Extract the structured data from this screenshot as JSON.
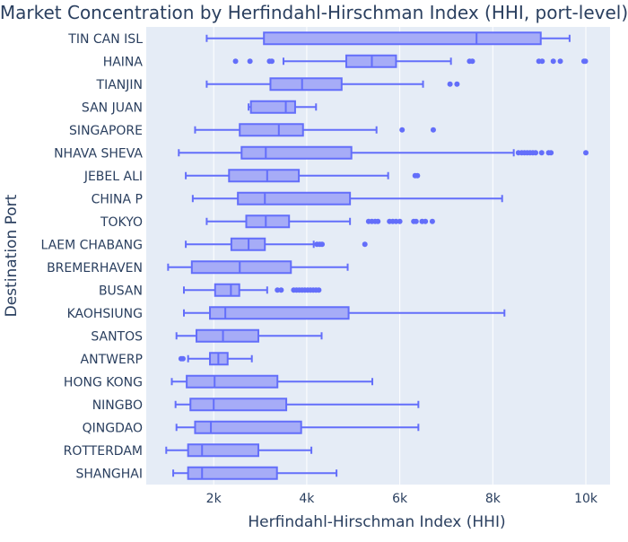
{
  "chart_data": {
    "type": "box",
    "orientation": "horizontal",
    "title": "Market Concentration by Herfindahl-Hirschman Index (HHI, port-level)",
    "xlabel": "Herfindahl-Hirschman Index (HHI)",
    "ylabel": "Destination Port",
    "xlim": [
      550,
      10520
    ],
    "x_ticks": [
      2000,
      4000,
      6000,
      8000,
      10000
    ],
    "x_tick_labels": [
      "2k",
      "4k",
      "6k",
      "8k",
      "10k"
    ],
    "grid": true,
    "colors": {
      "plot_bg": "#e5ecf6",
      "grid": "#ffffff",
      "box_fill": "#a6acf7",
      "box_line": "#636efa",
      "text": "#2a3f5f"
    },
    "ports": [
      {
        "name": "TIN CAN ISL",
        "whisker_low": 1850,
        "q1": 3080,
        "median": 7650,
        "q3": 9030,
        "whisker_high": 9650,
        "outliers": []
      },
      {
        "name": "HAINA",
        "whisker_low": 3500,
        "q1": 4850,
        "median": 5400,
        "q3": 5920,
        "whisker_high": 7100,
        "outliers": [
          2470,
          2780,
          3200,
          3250,
          7500,
          7560,
          8990,
          9060,
          9300,
          9450,
          9960,
          9990
        ]
      },
      {
        "name": "TIANJIN",
        "whisker_low": 1850,
        "q1": 3220,
        "median": 3900,
        "q3": 4750,
        "whisker_high": 6500,
        "outliers": [
          7080,
          7230
        ]
      },
      {
        "name": "SAN JUAN",
        "whisker_low": 2750,
        "q1": 2800,
        "median": 3550,
        "q3": 3750,
        "whisker_high": 4200,
        "outliers": []
      },
      {
        "name": "SINGAPORE",
        "whisker_low": 1600,
        "q1": 2560,
        "median": 3400,
        "q3": 3920,
        "whisker_high": 5500,
        "outliers": [
          6050,
          6720
        ]
      },
      {
        "name": "NHAVA SHEVA",
        "whisker_low": 1250,
        "q1": 2600,
        "median": 3120,
        "q3": 4960,
        "whisker_high": 8450,
        "outliers": [
          8550,
          8620,
          8680,
          8740,
          8800,
          8860,
          8920,
          9050,
          9200,
          9250,
          10000
        ]
      },
      {
        "name": "JEBEL ALI",
        "whisker_low": 1400,
        "q1": 2330,
        "median": 3150,
        "q3": 3830,
        "whisker_high": 5750,
        "outliers": [
          6330,
          6380
        ]
      },
      {
        "name": "CHINA P",
        "whisker_low": 1550,
        "q1": 2520,
        "median": 3100,
        "q3": 4930,
        "whisker_high": 8200,
        "outliers": []
      },
      {
        "name": "TOKYO",
        "whisker_low": 1850,
        "q1": 2700,
        "median": 3120,
        "q3": 3620,
        "whisker_high": 4930,
        "outliers": [
          5330,
          5400,
          5470,
          5530,
          5780,
          5850,
          5920,
          6000,
          6300,
          6350,
          6480,
          6550,
          6700
        ]
      },
      {
        "name": "LAEM CHABANG",
        "whisker_low": 1400,
        "q1": 2380,
        "median": 2750,
        "q3": 3100,
        "whisker_high": 4150,
        "outliers": [
          4220,
          4280,
          4330,
          5250
        ]
      },
      {
        "name": "BREMERHAVEN",
        "whisker_low": 1020,
        "q1": 1530,
        "median": 2560,
        "q3": 3660,
        "whisker_high": 4880,
        "outliers": []
      },
      {
        "name": "BUSAN",
        "whisker_low": 1360,
        "q1": 2030,
        "median": 2370,
        "q3": 2550,
        "whisker_high": 3150,
        "outliers": [
          3370,
          3450,
          3720,
          3780,
          3840,
          3900,
          3960,
          4020,
          4080,
          4140,
          4200,
          4260
        ]
      },
      {
        "name": "KAOHSIUNG",
        "whisker_low": 1360,
        "q1": 1920,
        "median": 2250,
        "q3": 4900,
        "whisker_high": 8250,
        "outliers": []
      },
      {
        "name": "SANTOS",
        "whisker_low": 1200,
        "q1": 1630,
        "median": 2200,
        "q3": 2960,
        "whisker_high": 4320,
        "outliers": []
      },
      {
        "name": "ANTWERP",
        "whisker_low": 1450,
        "q1": 1920,
        "median": 2100,
        "q3": 2300,
        "whisker_high": 2820,
        "outliers": [
          1300,
          1340
        ]
      },
      {
        "name": "HONG KONG",
        "whisker_low": 1100,
        "q1": 1420,
        "median": 2020,
        "q3": 3370,
        "whisker_high": 5410,
        "outliers": []
      },
      {
        "name": "NINGBO",
        "whisker_low": 1180,
        "q1": 1500,
        "median": 2000,
        "q3": 3560,
        "whisker_high": 6400,
        "outliers": []
      },
      {
        "name": "QINGDAO",
        "whisker_low": 1200,
        "q1": 1600,
        "median": 1940,
        "q3": 3880,
        "whisker_high": 6400,
        "outliers": []
      },
      {
        "name": "ROTTERDAM",
        "whisker_low": 980,
        "q1": 1450,
        "median": 1750,
        "q3": 2960,
        "whisker_high": 4100,
        "outliers": []
      },
      {
        "name": "SHANGHAI",
        "whisker_low": 1130,
        "q1": 1450,
        "median": 1750,
        "q3": 3360,
        "whisker_high": 4640,
        "outliers": []
      }
    ]
  }
}
